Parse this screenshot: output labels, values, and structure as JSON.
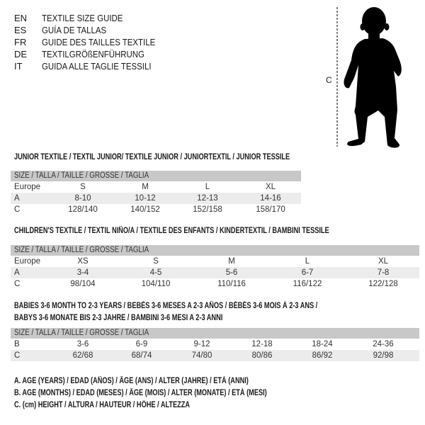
{
  "languages": [
    {
      "code": "EN",
      "name": "TEXTILE SIZE GUIDE"
    },
    {
      "code": "ES",
      "name": "GUÍA DE TALLAS"
    },
    {
      "code": "FR",
      "name": "GUIDE DES TAILLES TEXTILE"
    },
    {
      "code": "DE",
      "name": "TEXTILGRÖßENFÜHRUNG"
    },
    {
      "code": "IT",
      "name": "GUIDA ALLE TAGLIE TESSILI"
    }
  ],
  "figure": {
    "height_label": "C"
  },
  "tables": [
    {
      "title": "JUNIOR TEXTILE / TEXTIL JUNIOR/ TEXTILE JUNIOR / JUNIORTEXTIL / JUNIOR TESSILE",
      "header": "SIZE / TALLA / TAILLE / GRÖSSE / TAGLIA",
      "rows": [
        {
          "label": "Europe",
          "values": [
            "S",
            "M",
            "L",
            "XL"
          ]
        },
        {
          "label": "A",
          "values": [
            "8-10",
            "10-12",
            "12-13",
            "14-16"
          ]
        },
        {
          "label": "C",
          "values": [
            "128/140",
            "140/152",
            "152/158",
            "158/170"
          ]
        }
      ]
    },
    {
      "title": "CHILDREN'S TEXTILE / TEXTIL NIÑO/A / TEXTILE DES ENFANTS / KINDERTEXTIL / BAMBINI TESSILE",
      "header": "SIZE / TALLA / TAILLE / GRÖSSE / TAGLIA",
      "rows": [
        {
          "label": "Europe",
          "values": [
            "XS",
            "S",
            "M",
            "L",
            "XL"
          ]
        },
        {
          "label": "A",
          "values": [
            "3-4",
            "4-5",
            "5-6",
            "6-7",
            "7-8"
          ]
        },
        {
          "label": "C",
          "values": [
            "98/104",
            "104/110",
            "110/116",
            "116/122",
            "122/128"
          ]
        }
      ]
    },
    {
      "title": "BABIES 3-6 MONTH TO 2-3 YEARS / BEBÉS 3-6 MESES A 2-3 AÑOS / BÉBÉS 3-6 MOIS À 2-3 ANS /",
      "title2": "BABYS 3-6 MONATE BIS 2-3 JAHRE / BAMBINI 3-6 MESI A 2-3 ANNI",
      "header": "SIZE / TALLA / TAILLE / GRÖSSE / TAGLIA",
      "rows": [
        {
          "label": "B",
          "values": [
            "3-6",
            "6-9",
            "9-12",
            "12-18",
            "18-24",
            "24-36"
          ]
        },
        {
          "label": "C",
          "values": [
            "62/68",
            "68/74",
            "74/80",
            "80/86",
            "86/92",
            "92/98"
          ]
        }
      ]
    }
  ],
  "legend": [
    "A. AGE (YEARS) / EDAD (AÑOS) / ÂGE (ANS) / ALTER (JAHRE) / ETÀ (ANNI)",
    "B. AGE (MONTHS) / EDAD (MESES) / ÂGE (MOIS) / ALTER (MONATE) / ETÀ (MESI)",
    "C. (cm) HEIGHT / ALTURA / HAUTEUR / HÖHE / ALTEZZA"
  ]
}
